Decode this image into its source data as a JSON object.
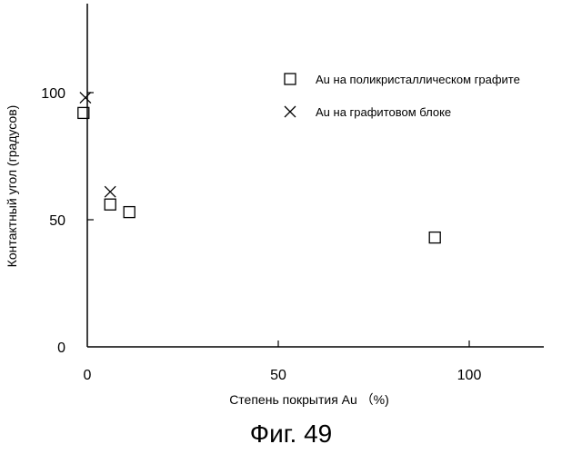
{
  "chart_data": {
    "type": "scatter",
    "xlabel": "Степень покрытия Au （%)",
    "ylabel": "Контактный угол (градусов)",
    "xlim": [
      0,
      120
    ],
    "ylim": [
      0,
      135
    ],
    "x_ticks": [
      0,
      50,
      100
    ],
    "y_ticks": [
      0,
      50,
      100
    ],
    "grid": false,
    "legend_position": "top-right",
    "series": [
      {
        "name": "Au на поликристаллическом графите",
        "marker": "square",
        "points": [
          {
            "x": -1,
            "y": 92
          },
          {
            "x": 6,
            "y": 56
          },
          {
            "x": 11,
            "y": 53
          },
          {
            "x": 91,
            "y": 43
          }
        ]
      },
      {
        "name": "Au на графитовом блоке",
        "marker": "x",
        "points": [
          {
            "x": -0.5,
            "y": 98
          },
          {
            "x": 6,
            "y": 61
          }
        ]
      }
    ]
  },
  "caption": "Фиг. 49"
}
